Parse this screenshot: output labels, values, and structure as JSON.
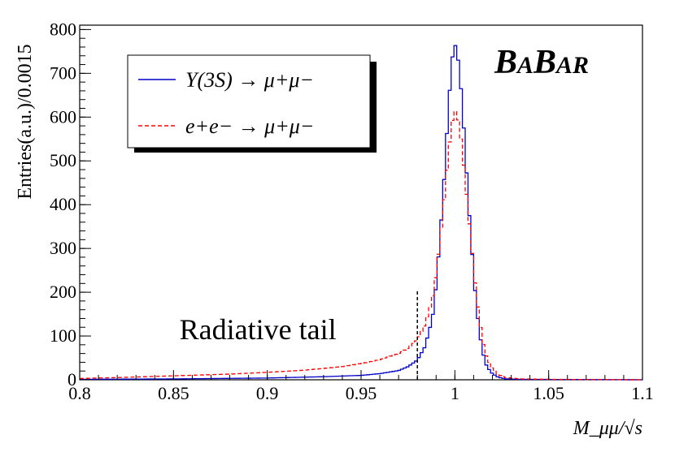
{
  "chart_data": {
    "type": "histogram",
    "title": "",
    "xlabel": "M_μμ/√s",
    "ylabel": "Entries(a.u.)/0.0015",
    "xlim": [
      0.8,
      1.1
    ],
    "ylim": [
      0,
      810
    ],
    "x_ticks": [
      "0.8",
      "0.85",
      "0.9",
      "0.95",
      "1",
      "1.05",
      "1.1"
    ],
    "x_tick_values": [
      0.8,
      0.85,
      0.9,
      0.95,
      1.0,
      1.05,
      1.1
    ],
    "y_ticks": [
      "0",
      "100",
      "200",
      "300",
      "400",
      "500",
      "600",
      "700",
      "800"
    ],
    "y_tick_values": [
      0,
      100,
      200,
      300,
      400,
      500,
      600,
      700,
      800
    ],
    "bin_width": 0.0015,
    "series": [
      {
        "name": "Υ(3S) → μ+μ−",
        "color": "#0000cc",
        "style": "solid",
        "points": [
          [
            0.8,
            1
          ],
          [
            0.85,
            2
          ],
          [
            0.9,
            4
          ],
          [
            0.93,
            7
          ],
          [
            0.95,
            10
          ],
          [
            0.96,
            14
          ],
          [
            0.97,
            21
          ],
          [
            0.975,
            30
          ],
          [
            0.98,
            45
          ],
          [
            0.984,
            75
          ],
          [
            0.988,
            140
          ],
          [
            0.99,
            215
          ],
          [
            0.992,
            320
          ],
          [
            0.994,
            440
          ],
          [
            0.996,
            580
          ],
          [
            0.998,
            710
          ],
          [
            0.9995,
            765
          ],
          [
            1.0,
            768
          ],
          [
            1.0015,
            740
          ],
          [
            1.003,
            680
          ],
          [
            1.005,
            560
          ],
          [
            1.007,
            420
          ],
          [
            1.009,
            300
          ],
          [
            1.011,
            190
          ],
          [
            1.013,
            110
          ],
          [
            1.015,
            60
          ],
          [
            1.017,
            30
          ],
          [
            1.02,
            14
          ],
          [
            1.023,
            6
          ],
          [
            1.027,
            2
          ],
          [
            1.035,
            1
          ],
          [
            1.1,
            0
          ]
        ]
      },
      {
        "name": "e+e− → μ+μ−",
        "color": "#ff0000",
        "style": "dashed",
        "points": [
          [
            0.8,
            3
          ],
          [
            0.82,
            5
          ],
          [
            0.85,
            9
          ],
          [
            0.88,
            13
          ],
          [
            0.9,
            17
          ],
          [
            0.92,
            22
          ],
          [
            0.94,
            30
          ],
          [
            0.95,
            37
          ],
          [
            0.96,
            46
          ],
          [
            0.97,
            60
          ],
          [
            0.975,
            72
          ],
          [
            0.98,
            92
          ],
          [
            0.984,
            125
          ],
          [
            0.988,
            185
          ],
          [
            0.99,
            240
          ],
          [
            0.992,
            315
          ],
          [
            0.994,
            400
          ],
          [
            0.996,
            490
          ],
          [
            0.998,
            575
          ],
          [
            0.9995,
            610
          ],
          [
            1.0,
            615
          ],
          [
            1.0015,
            600
          ],
          [
            1.003,
            560
          ],
          [
            1.005,
            480
          ],
          [
            1.007,
            390
          ],
          [
            1.009,
            300
          ],
          [
            1.011,
            210
          ],
          [
            1.013,
            140
          ],
          [
            1.015,
            85
          ],
          [
            1.017,
            50
          ],
          [
            1.02,
            25
          ],
          [
            1.023,
            12
          ],
          [
            1.027,
            5
          ],
          [
            1.035,
            2
          ],
          [
            1.05,
            1
          ],
          [
            1.1,
            0
          ]
        ]
      }
    ],
    "cut_line": {
      "x": 0.98,
      "y_top": 205,
      "color": "#000000",
      "style": "dashed"
    },
    "annotations": [
      {
        "text": "Radiative tail",
        "x": 0.895,
        "y": 115
      }
    ],
    "legend": {
      "placement": "top-left",
      "entries": [
        "Υ(3S) → μ+μ−",
        "e+e− → μ+μ−"
      ]
    },
    "logo": {
      "big1": "B",
      "small1": "A",
      "big2": "B",
      "small2": "AR"
    }
  }
}
